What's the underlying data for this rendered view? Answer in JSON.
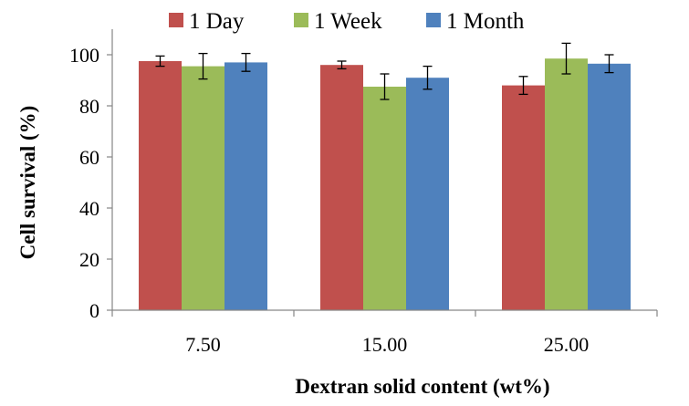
{
  "chart_data": {
    "type": "bar",
    "title": "",
    "xlabel": "Dextran solid content (wt%)",
    "ylabel": "Cell survival (%)",
    "categories": [
      "7.50",
      "15.00",
      "25.00"
    ],
    "ylim": [
      0,
      100
    ],
    "yticks": [
      0,
      20,
      40,
      60,
      80,
      100
    ],
    "grid": false,
    "legend": {
      "placement": "top"
    },
    "series": [
      {
        "name": "1 Day",
        "color": "#C0504D",
        "values": [
          97.5,
          96,
          88
        ],
        "errors": [
          2,
          1.5,
          3.5
        ]
      },
      {
        "name": "1 Week",
        "color": "#9BBB59",
        "values": [
          95.5,
          87.5,
          98.5
        ],
        "errors": [
          5,
          5,
          6
        ]
      },
      {
        "name": "1 Month",
        "color": "#4F81BD",
        "values": [
          97,
          91,
          96.5
        ],
        "errors": [
          3.5,
          4.5,
          3.5
        ]
      }
    ]
  }
}
